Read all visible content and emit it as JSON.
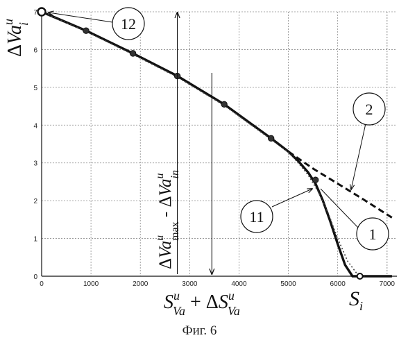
{
  "chart_data": {
    "type": "line",
    "xlim": [
      0,
      7200
    ],
    "ylim": [
      0,
      7
    ],
    "x_ticks": [
      0,
      1000,
      2000,
      3000,
      4000,
      5000,
      6000,
      7000
    ],
    "y_ticks": [
      0,
      1,
      2,
      3,
      4,
      5,
      6,
      7
    ],
    "grid": true,
    "grid_style": "dotted",
    "series": [
      {
        "id": "curve_2",
        "line": "dashed",
        "x": [
          5000,
          5500,
          6000,
          6500,
          7100
        ],
        "y": [
          3.3,
          2.85,
          2.45,
          2.05,
          1.55
        ]
      },
      {
        "id": "curve_11",
        "line": "solid-thick",
        "x": [
          0,
          900,
          1850,
          2750,
          3700,
          4650,
          5000,
          5200,
          5400,
          5550,
          5700,
          5850,
          6000,
          6150,
          6300,
          6450,
          6600,
          7100
        ],
        "y": [
          7.0,
          6.5,
          5.9,
          5.3,
          4.55,
          3.65,
          3.3,
          3.05,
          2.75,
          2.45,
          2.0,
          1.45,
          0.85,
          0.3,
          0.0,
          0.0,
          0.0,
          0.0
        ]
      },
      {
        "id": "curve_1",
        "line": "dotted",
        "x": [
          0,
          900,
          1850,
          2750,
          3700,
          4650,
          5000,
          5200,
          5400,
          5600,
          5800,
          6000,
          6200,
          6400,
          6550
        ],
        "y": [
          7.0,
          6.48,
          5.87,
          5.27,
          4.52,
          3.62,
          3.28,
          3.0,
          2.68,
          2.25,
          1.7,
          1.0,
          0.4,
          0.05,
          0.0
        ]
      }
    ],
    "markers": {
      "x": [
        900,
        1850,
        2750,
        3700,
        4650,
        5550
      ],
      "y": [
        6.5,
        5.9,
        5.3,
        4.55,
        3.65,
        2.55
      ]
    },
    "endpoints": {
      "start": {
        "x": 0,
        "y": 7.0
      },
      "end": {
        "x": 6450,
        "y": 0.0
      }
    },
    "arrows": {
      "vertical_up_x": 2750,
      "vertical_down_x": 3450
    },
    "callouts": [
      "12",
      "2",
      "11",
      "1"
    ],
    "y_axis_label": "ΔVa u i",
    "x_axis_label": "S u Va + ΔS u Va",
    "x_end_label": "S i",
    "range_label": "ΔVa u max - ΔVa u in"
  },
  "caption": "Фиг. 6"
}
